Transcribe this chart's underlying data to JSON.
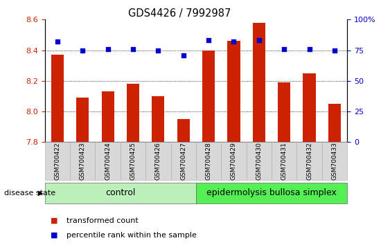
{
  "title": "GDS4426 / 7992987",
  "samples": [
    "GSM700422",
    "GSM700423",
    "GSM700424",
    "GSM700425",
    "GSM700426",
    "GSM700427",
    "GSM700428",
    "GSM700429",
    "GSM700430",
    "GSM700431",
    "GSM700432",
    "GSM700433"
  ],
  "bar_values": [
    8.37,
    8.09,
    8.13,
    8.18,
    8.1,
    7.95,
    8.4,
    8.46,
    8.58,
    8.19,
    8.25,
    8.05
  ],
  "percentile_values": [
    82,
    75,
    76,
    76,
    75,
    71,
    83,
    82,
    83,
    76,
    76,
    75
  ],
  "bar_bottom": 7.8,
  "bar_color": "#cc2200",
  "dot_color": "#0000cc",
  "ylim_left": [
    7.8,
    8.6
  ],
  "ylim_right": [
    0,
    100
  ],
  "yticks_left": [
    7.8,
    8.0,
    8.2,
    8.4,
    8.6
  ],
  "yticks_right": [
    0,
    25,
    50,
    75,
    100
  ],
  "ytick_labels_right": [
    "0",
    "25",
    "50",
    "75",
    "100%"
  ],
  "grid_values": [
    8.0,
    8.2,
    8.4
  ],
  "control_samples": 6,
  "control_label": "control",
  "disease_label": "epidermolysis bullosa simplex",
  "group_label": "disease state",
  "legend_bar": "transformed count",
  "legend_dot": "percentile rank within the sample",
  "control_color": "#bbf0bb",
  "disease_color": "#55ee55",
  "xtick_bg_color": "#d8d8d8",
  "tick_label_color_left": "#cc2200",
  "tick_label_color_right": "#0000cc",
  "bar_width": 0.5,
  "figsize": [
    5.63,
    3.54
  ],
  "dpi": 100
}
